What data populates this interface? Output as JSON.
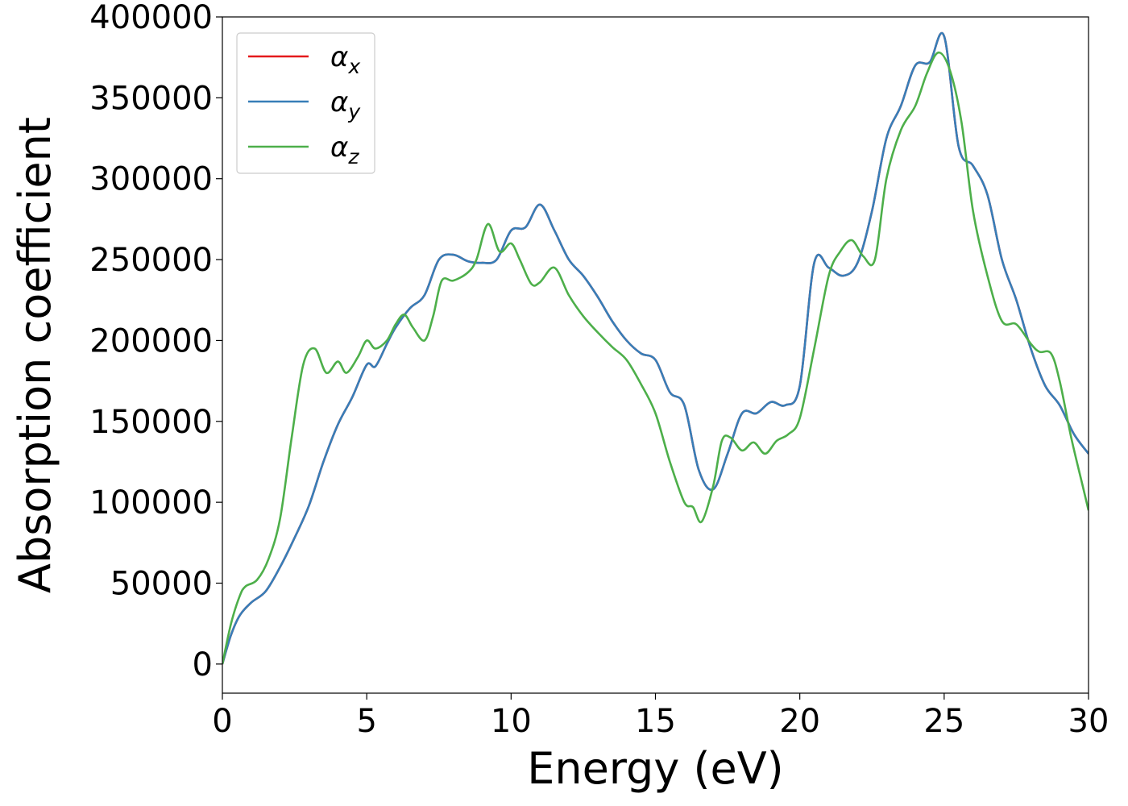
{
  "chart_data": {
    "type": "line",
    "xlabel": "Energy (eV)",
    "ylabel": "Absorption coefficient",
    "xlim": [
      0,
      30
    ],
    "ylim": [
      -18000,
      400000
    ],
    "xticks": [
      0,
      5,
      10,
      15,
      20,
      25,
      30
    ],
    "yticks": [
      0,
      50000,
      100000,
      150000,
      200000,
      250000,
      300000,
      350000,
      400000
    ],
    "xtick_labels": [
      "0",
      "5",
      "10",
      "15",
      "20",
      "25",
      "30"
    ],
    "ytick_labels": [
      "0",
      "50000",
      "100000",
      "150000",
      "200000",
      "250000",
      "300000",
      "350000",
      "400000"
    ],
    "grid": false,
    "legend_position": "top-left",
    "series": [
      {
        "name": "αx",
        "color": "#e41a1c",
        "x": [
          0,
          0.3,
          0.6,
          1,
          1.5,
          2,
          2.5,
          3,
          3.5,
          4,
          4.5,
          5,
          5.3,
          5.7,
          6,
          6.5,
          7,
          7.5,
          8,
          8.5,
          9,
          9.5,
          10,
          10.5,
          11,
          11.5,
          12,
          12.5,
          13,
          13.5,
          14,
          14.5,
          15,
          15.5,
          16,
          16.5,
          17,
          17.5,
          18,
          18.5,
          19,
          19.5,
          20,
          20.5,
          21,
          21.5,
          22,
          22.5,
          23,
          23.5,
          24,
          24.5,
          25,
          25.5,
          26,
          26.5,
          27,
          27.5,
          28,
          28.5,
          29,
          29.5,
          30
        ],
        "values": [
          0,
          18000,
          30000,
          38000,
          45000,
          60000,
          78000,
          98000,
          125000,
          148000,
          165000,
          185000,
          184000,
          198000,
          208000,
          220000,
          228000,
          250000,
          253000,
          249000,
          248000,
          250000,
          268000,
          270000,
          284000,
          268000,
          250000,
          240000,
          227000,
          212000,
          200000,
          192000,
          188000,
          168000,
          160000,
          120000,
          108000,
          130000,
          155000,
          155000,
          162000,
          160000,
          172000,
          248000,
          245000,
          240000,
          248000,
          280000,
          325000,
          345000,
          370000,
          372000,
          388000,
          320000,
          308000,
          290000,
          250000,
          225000,
          195000,
          172000,
          160000,
          142000,
          130000
        ]
      },
      {
        "name": "αy",
        "color": "#377eb8",
        "x": [
          0,
          0.3,
          0.6,
          1,
          1.5,
          2,
          2.5,
          3,
          3.5,
          4,
          4.5,
          5,
          5.3,
          5.7,
          6,
          6.5,
          7,
          7.5,
          8,
          8.5,
          9,
          9.5,
          10,
          10.5,
          11,
          11.5,
          12,
          12.5,
          13,
          13.5,
          14,
          14.5,
          15,
          15.5,
          16,
          16.5,
          17,
          17.5,
          18,
          18.5,
          19,
          19.5,
          20,
          20.5,
          21,
          21.5,
          22,
          22.5,
          23,
          23.5,
          24,
          24.5,
          25,
          25.5,
          26,
          26.5,
          27,
          27.5,
          28,
          28.5,
          29,
          29.5,
          30
        ],
        "values": [
          0,
          18000,
          30000,
          38000,
          45000,
          60000,
          78000,
          98000,
          125000,
          148000,
          165000,
          185000,
          184000,
          198000,
          208000,
          220000,
          228000,
          250000,
          253000,
          249000,
          248000,
          250000,
          268000,
          270000,
          284000,
          268000,
          250000,
          240000,
          227000,
          212000,
          200000,
          192000,
          188000,
          168000,
          160000,
          120000,
          108000,
          130000,
          155000,
          155000,
          162000,
          160000,
          172000,
          248000,
          245000,
          240000,
          248000,
          280000,
          325000,
          345000,
          370000,
          372000,
          388000,
          320000,
          308000,
          290000,
          250000,
          225000,
          195000,
          172000,
          160000,
          142000,
          130000
        ]
      },
      {
        "name": "αz",
        "color": "#4daf4a",
        "x": [
          0,
          0.3,
          0.6,
          0.8,
          1.2,
          1.6,
          2,
          2.4,
          2.8,
          3.2,
          3.6,
          4,
          4.3,
          4.7,
          5,
          5.3,
          5.7,
          6,
          6.3,
          6.6,
          7,
          7.3,
          7.6,
          8,
          8.5,
          8.8,
          9.2,
          9.6,
          10,
          10.3,
          10.7,
          11,
          11.5,
          12,
          12.5,
          13,
          13.5,
          14,
          14.5,
          15,
          15.5,
          16,
          16.3,
          16.6,
          17,
          17.3,
          17.6,
          18,
          18.4,
          18.8,
          19.2,
          19.6,
          20,
          20.5,
          21,
          21.4,
          21.8,
          22.2,
          22.6,
          23,
          23.5,
          24,
          24.4,
          24.8,
          25.2,
          25.6,
          26,
          26.5,
          27,
          27.5,
          28,
          28.3,
          28.7,
          29,
          29.4,
          29.8,
          30
        ],
        "values": [
          0,
          25000,
          42000,
          48000,
          52000,
          65000,
          90000,
          140000,
          185000,
          195000,
          180000,
          187000,
          180000,
          190000,
          200000,
          195000,
          200000,
          210000,
          216000,
          208000,
          200000,
          215000,
          237000,
          237000,
          242000,
          250000,
          272000,
          255000,
          260000,
          250000,
          235000,
          236000,
          245000,
          228000,
          215000,
          205000,
          196000,
          188000,
          173000,
          155000,
          125000,
          100000,
          97000,
          88000,
          110000,
          138000,
          140000,
          132000,
          137000,
          130000,
          138000,
          142000,
          152000,
          195000,
          240000,
          255000,
          262000,
          252000,
          250000,
          300000,
          330000,
          345000,
          365000,
          378000,
          367000,
          335000,
          280000,
          240000,
          212000,
          210000,
          198000,
          193000,
          192000,
          175000,
          140000,
          110000,
          95000
        ]
      }
    ]
  }
}
